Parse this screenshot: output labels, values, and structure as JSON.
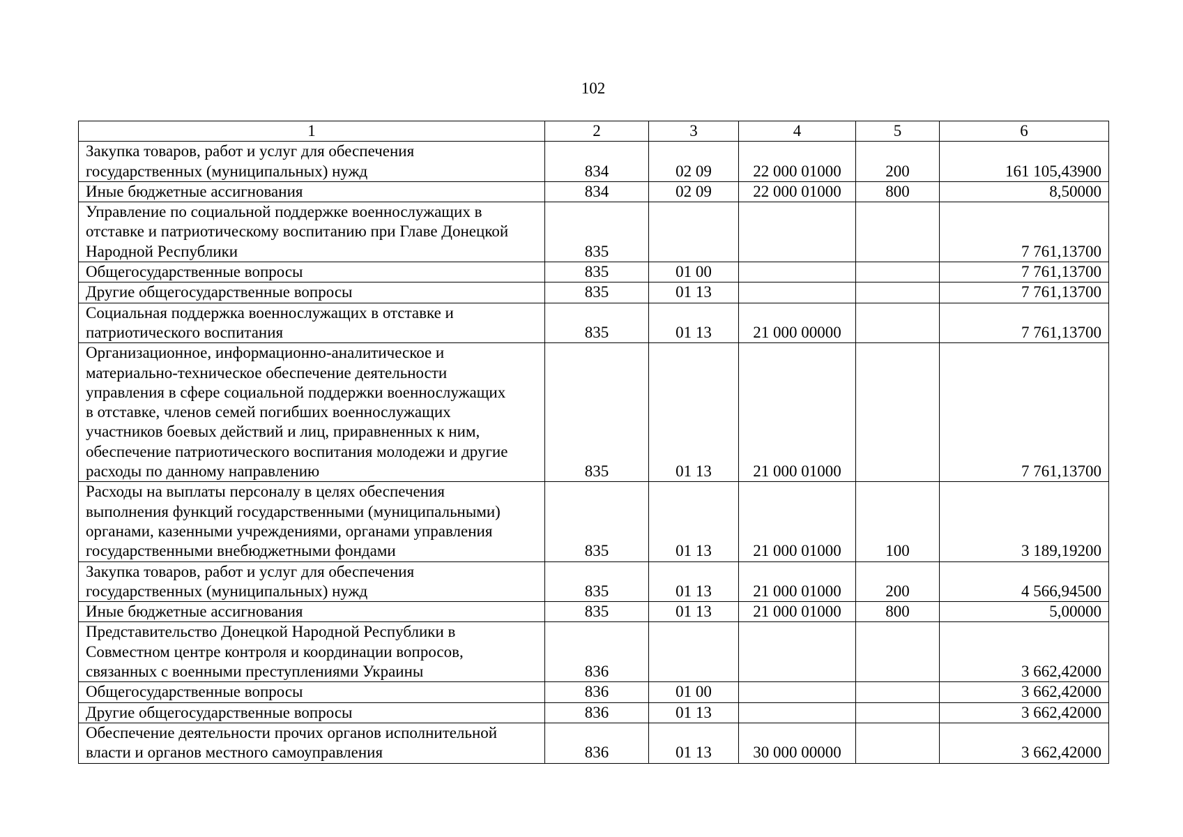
{
  "page_number": "102",
  "table": {
    "headers": [
      "1",
      "2",
      "3",
      "4",
      "5",
      "6"
    ],
    "rows": [
      [
        "Закупка товаров, работ и услуг для обеспечения\nгосударственных (муниципальных) нужд",
        "834",
        "02 09",
        "22 000 01000",
        "200",
        "161 105,43900"
      ],
      [
        "Иные бюджетные ассигнования",
        "834",
        "02 09",
        "22 000 01000",
        "800",
        "8,50000"
      ],
      [
        "Управление по социальной поддержке военнослужащих в\nотставке и патриотическому воспитанию при Главе Донецкой\nНародной Республики",
        "835",
        "",
        "",
        "",
        "7 761,13700"
      ],
      [
        "Общегосударственные вопросы",
        "835",
        "01 00",
        "",
        "",
        "7 761,13700"
      ],
      [
        "Другие общегосударственные вопросы",
        "835",
        "01 13",
        "",
        "",
        "7 761,13700"
      ],
      [
        "Социальная поддержка военнослужащих в отставке и\nпатриотического воспитания",
        "835",
        "01 13",
        "21 000 00000",
        "",
        "7 761,13700"
      ],
      [
        "Организационное, информационно-аналитическое и\nматериально-техническое обеспечение деятельности\nуправления в сфере социальной поддержки военнослужащих\nв отставке, членов семей погибших военнослужащих\nучастников боевых действий и лиц, приравненных к ним,\nобеспечение патриотического воспитания молодежи и другие\nрасходы по данному направлению",
        "835",
        "01 13",
        "21 000 01000",
        "",
        "7 761,13700"
      ],
      [
        "Расходы на выплаты персоналу в целях обеспечения\nвыполнения функций государственными (муниципальными)\nорганами, казенными учреждениями, органами управления\nгосударственными внебюджетными фондами",
        "835",
        "01 13",
        "21 000 01000",
        "100",
        "3 189,19200"
      ],
      [
        "Закупка товаров, работ и услуг для обеспечения\nгосударственных (муниципальных) нужд",
        "835",
        "01 13",
        "21 000 01000",
        "200",
        "4 566,94500"
      ],
      [
        "Иные бюджетные ассигнования",
        "835",
        "01 13",
        "21 000 01000",
        "800",
        "5,00000"
      ],
      [
        "Представительство Донецкой Народной Республики в\nСовместном центре контроля и координации вопросов,\nсвязанных с военными преступлениями Украины",
        "836",
        "",
        "",
        "",
        "3 662,42000"
      ],
      [
        "Общегосударственные вопросы",
        "836",
        "01 00",
        "",
        "",
        "3 662,42000"
      ],
      [
        "Другие общегосударственные вопросы",
        "836",
        "01 13",
        "",
        "",
        "3 662,42000"
      ],
      [
        "Обеспечение деятельности прочих органов исполнительной\nвласти и органов местного самоуправления",
        "836",
        "01 13",
        "30 000 00000",
        "",
        "3 662,42000"
      ]
    ]
  }
}
